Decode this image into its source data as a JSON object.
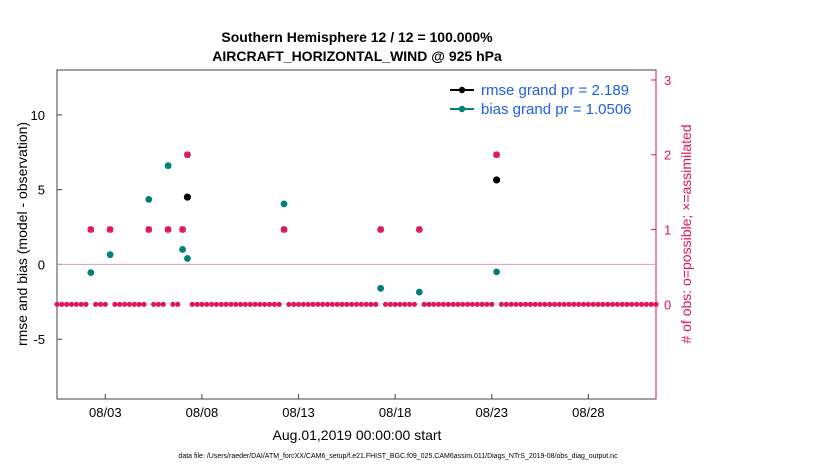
{
  "chart_data": {
    "type": "scatter",
    "title_line1": "Southern Hemisphere 12 / 12 = 100.000%",
    "title_line2": "AIRCRAFT_HORIZONTAL_WIND @ 925 hPa",
    "xlabel": "Aug.01,2019 00:00:00 start",
    "ylabel_left": "rmse and bias (model - observation)",
    "ylabel_right": "# of obs: o=possible; ×=assimilated",
    "footnote": "data file: /Users/raeder/DAI/ATM_forcXX/CAM6_setup/f.e21.FHIST_BGC.f09_025.CAM6assim.011/Diags_NTrS_2019-08/obs_diag_output.nc",
    "xlim": [
      0.5,
      31.5
    ],
    "ylim_left": [
      -9,
      13
    ],
    "ylim_right": [
      -1.2666667,
      3.1333333
    ],
    "x_ticks": [
      3,
      8,
      13,
      18,
      23,
      28
    ],
    "x_tick_labels": [
      "08/03",
      "08/08",
      "08/13",
      "08/18",
      "08/23",
      "08/28"
    ],
    "y_ticks_left": [
      -5,
      0,
      5,
      10
    ],
    "y_tick_labels_left": [
      "-5",
      "0",
      "5",
      "10"
    ],
    "y_ticks_right": [
      0,
      1,
      2,
      3
    ],
    "y_tick_labels_right": [
      "0",
      "1",
      "2",
      "3"
    ],
    "colors": {
      "rmse": "#000000",
      "bias": "#007f7f",
      "obs": "#e0165a",
      "legend_text": "#1f5fe0",
      "zero_line": "#c8a0b4"
    },
    "series": [
      {
        "name": "rmse grand pr = 2.189",
        "axis": "left",
        "points": [
          [
            7.25,
            4.5
          ],
          [
            23.25,
            5.65
          ]
        ]
      },
      {
        "name": "bias grand pr = 1.0506",
        "axis": "left",
        "points": [
          [
            2.25,
            -0.55
          ],
          [
            3.25,
            0.65
          ],
          [
            5.25,
            4.35
          ],
          [
            6.25,
            6.6
          ],
          [
            7.0,
            1.0
          ],
          [
            7.25,
            0.4
          ],
          [
            12.25,
            4.05
          ],
          [
            17.25,
            -1.6
          ],
          [
            19.25,
            -1.85
          ],
          [
            23.25,
            -0.5
          ]
        ]
      },
      {
        "name": "obs possible",
        "axis": "right",
        "points": [
          [
            2.25,
            1
          ],
          [
            3.25,
            1
          ],
          [
            5.25,
            1
          ],
          [
            6.25,
            1
          ],
          [
            7.0,
            1
          ],
          [
            7.25,
            2
          ],
          [
            12.25,
            1
          ],
          [
            17.25,
            1
          ],
          [
            19.25,
            1
          ],
          [
            23.25,
            2
          ]
        ]
      },
      {
        "name": "obs assimilated",
        "axis": "right",
        "points": [
          [
            2.25,
            1
          ],
          [
            3.25,
            1
          ],
          [
            5.25,
            1
          ],
          [
            6.25,
            1
          ],
          [
            7.0,
            1
          ],
          [
            7.25,
            2
          ],
          [
            12.25,
            1
          ],
          [
            17.25,
            1
          ],
          [
            19.25,
            1
          ],
          [
            23.25,
            2
          ]
        ]
      }
    ],
    "zero_obs_x_start": 0.5,
    "zero_obs_x_end": 31.5,
    "zero_obs_x_step": 0.25
  }
}
